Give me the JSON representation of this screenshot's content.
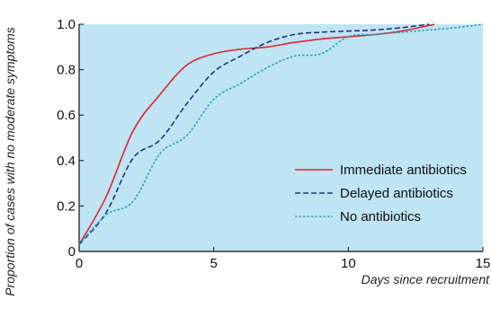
{
  "chart_data": {
    "type": "line",
    "xlabel": "Days since recruitment",
    "ylabel": "Proportion of cases with no moderate symptoms",
    "xlim": [
      0,
      15
    ],
    "ylim": [
      0,
      1.0
    ],
    "xticks": [
      0,
      5,
      10,
      15
    ],
    "yticks": [
      0,
      0.2,
      0.4,
      0.6,
      0.8,
      1.0
    ],
    "xtick_labels": [
      "0",
      "5",
      "10",
      "15"
    ],
    "ytick_labels": [
      "0",
      "0.2",
      "0.4",
      "0.6",
      "0.8",
      "1.0"
    ],
    "grid": false,
    "plot_background": "#bfe4f4",
    "legend_position": "bottom-right",
    "series": [
      {
        "name": "Immediate antibiotics",
        "color": "#e0232b",
        "style": "solid",
        "x": [
          0,
          1,
          2,
          3,
          4,
          5,
          6,
          7,
          8,
          9,
          10,
          11,
          12,
          13.2
        ],
        "y": [
          0.03,
          0.24,
          0.53,
          0.69,
          0.82,
          0.87,
          0.89,
          0.9,
          0.92,
          0.935,
          0.945,
          0.955,
          0.97,
          1.0
        ]
      },
      {
        "name": "Delayed antibiotics",
        "color": "#23327d",
        "style": "dashed",
        "x": [
          0,
          1,
          2,
          3,
          4,
          5,
          6,
          7,
          8,
          9,
          10,
          11,
          12,
          13
        ],
        "y": [
          0.03,
          0.17,
          0.41,
          0.49,
          0.65,
          0.79,
          0.86,
          0.92,
          0.955,
          0.965,
          0.97,
          0.975,
          0.985,
          1.0
        ]
      },
      {
        "name": "No antibiotics",
        "color": "#1fa3b4",
        "style": "dotted",
        "x": [
          0,
          1,
          2,
          3,
          4,
          5,
          6,
          7,
          8,
          9,
          10,
          11,
          12,
          13,
          14,
          15
        ],
        "y": [
          0.03,
          0.16,
          0.22,
          0.43,
          0.51,
          0.67,
          0.74,
          0.81,
          0.86,
          0.87,
          0.945,
          0.955,
          0.965,
          0.975,
          0.985,
          1.0
        ]
      }
    ]
  }
}
